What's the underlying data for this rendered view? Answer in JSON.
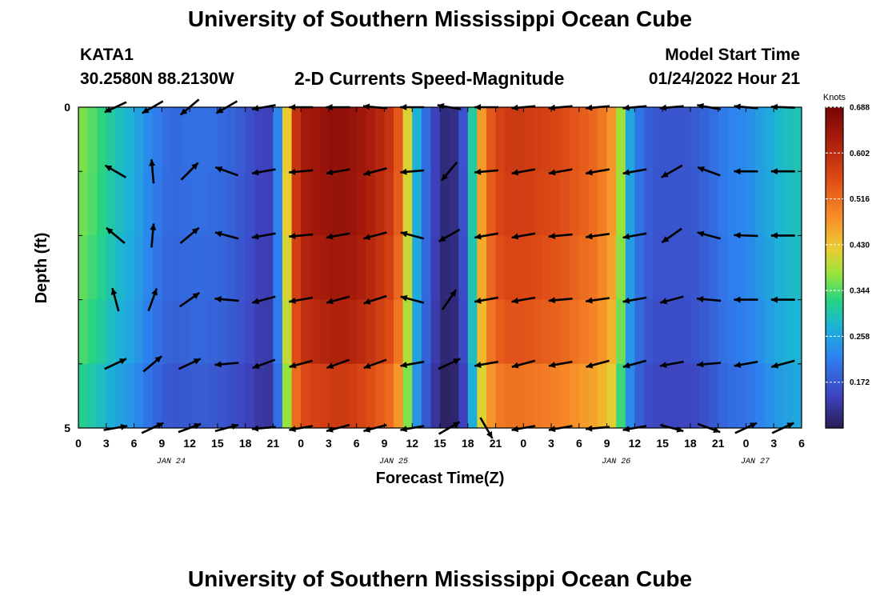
{
  "header": {
    "title_top": "University of Southern Mississippi Ocean Cube",
    "station": "KATA1",
    "coords": "30.2580N  88.2130W",
    "subtitle": "2-D Currents Speed-Magnitude",
    "model_label": "Model Start Time",
    "model_time": "01/24/2022 Hour 21",
    "title_bottom": "University of Southern Mississippi Ocean Cube"
  },
  "chart_data": {
    "type": "heatmap",
    "xlabel": "Forecast Time(Z)",
    "ylabel": "Depth (ft)",
    "xlim": [
      0,
      78
    ],
    "ylim": [
      0,
      5
    ],
    "y_ticks": [
      "0",
      "5"
    ],
    "x_tick_labels": [
      "0",
      "3",
      "6",
      "9",
      "12",
      "15",
      "18",
      "21",
      "0",
      "3",
      "6",
      "9",
      "12",
      "15",
      "18",
      "21",
      "0",
      "3",
      "6",
      "9",
      "12",
      "15",
      "18",
      "21",
      "0",
      "3",
      "6"
    ],
    "date_labels": [
      {
        "label": "JAN 24",
        "hour": 10
      },
      {
        "label": "JAN 25",
        "hour": 34
      },
      {
        "label": "JAN 26",
        "hour": 58
      },
      {
        "label": "JAN 27",
        "hour": 73
      }
    ],
    "colorbar": {
      "title": "Knots",
      "ticks": [
        "0.688",
        "0.602",
        "0.516",
        "0.430",
        "0.344",
        "0.258",
        "0.172"
      ],
      "tick_values": [
        0.688,
        0.602,
        0.516,
        0.43,
        0.344,
        0.258,
        0.172
      ],
      "min": 0.086,
      "max": 0.688
    },
    "speed_time_hours": [
      0,
      2,
      4,
      6,
      8,
      10,
      12,
      14,
      16,
      18,
      20,
      21,
      22,
      23,
      24,
      26,
      28,
      30,
      32,
      34,
      35,
      36,
      37,
      38,
      39,
      40,
      41,
      42,
      43,
      44,
      45,
      46,
      48,
      50,
      52,
      54,
      56,
      58,
      59,
      60,
      61,
      62,
      64,
      66,
      68,
      70,
      72,
      74,
      76,
      78
    ],
    "speed_knots": [
      0.37,
      0.34,
      0.3,
      0.27,
      0.22,
      0.19,
      0.2,
      0.2,
      0.19,
      0.17,
      0.14,
      0.15,
      0.3,
      0.55,
      0.63,
      0.65,
      0.66,
      0.65,
      0.62,
      0.58,
      0.5,
      0.33,
      0.22,
      0.17,
      0.12,
      0.1,
      0.13,
      0.2,
      0.42,
      0.52,
      0.56,
      0.58,
      0.58,
      0.57,
      0.56,
      0.54,
      0.52,
      0.46,
      0.3,
      0.22,
      0.19,
      0.17,
      0.17,
      0.17,
      0.19,
      0.22,
      0.23,
      0.26,
      0.29,
      0.3
    ],
    "depth_factor": [
      1.0,
      0.99,
      0.97,
      0.94,
      0.88
    ],
    "vector_time_hours": [
      4,
      8,
      12,
      16,
      20,
      24,
      28,
      32,
      36,
      40,
      44,
      48,
      52,
      56,
      60,
      64,
      68,
      72,
      76
    ],
    "vector_direction_deg": [
      [
        205,
        210,
        220,
        210,
        190,
        180,
        180,
        175,
        180,
        170,
        180,
        185,
        185,
        185,
        185,
        185,
        170,
        175,
        178
      ],
      [
        150,
        95,
        45,
        160,
        190,
        185,
        190,
        195,
        185,
        230,
        185,
        190,
        190,
        190,
        190,
        210,
        160,
        180,
        180
      ],
      [
        140,
        85,
        40,
        165,
        190,
        185,
        190,
        195,
        165,
        210,
        190,
        190,
        185,
        188,
        190,
        215,
        165,
        178,
        180
      ],
      [
        105,
        70,
        35,
        175,
        195,
        190,
        195,
        198,
        165,
        55,
        190,
        190,
        185,
        188,
        190,
        195,
        175,
        180,
        180
      ],
      [
        25,
        40,
        25,
        185,
        200,
        195,
        200,
        200,
        190,
        25,
        190,
        195,
        190,
        195,
        195,
        190,
        185,
        190,
        195
      ],
      [
        10,
        25,
        20,
        15,
        185,
        190,
        195,
        195,
        190,
        30,
        300,
        190,
        190,
        185,
        190,
        345,
        340,
        25,
        25
      ]
    ]
  }
}
